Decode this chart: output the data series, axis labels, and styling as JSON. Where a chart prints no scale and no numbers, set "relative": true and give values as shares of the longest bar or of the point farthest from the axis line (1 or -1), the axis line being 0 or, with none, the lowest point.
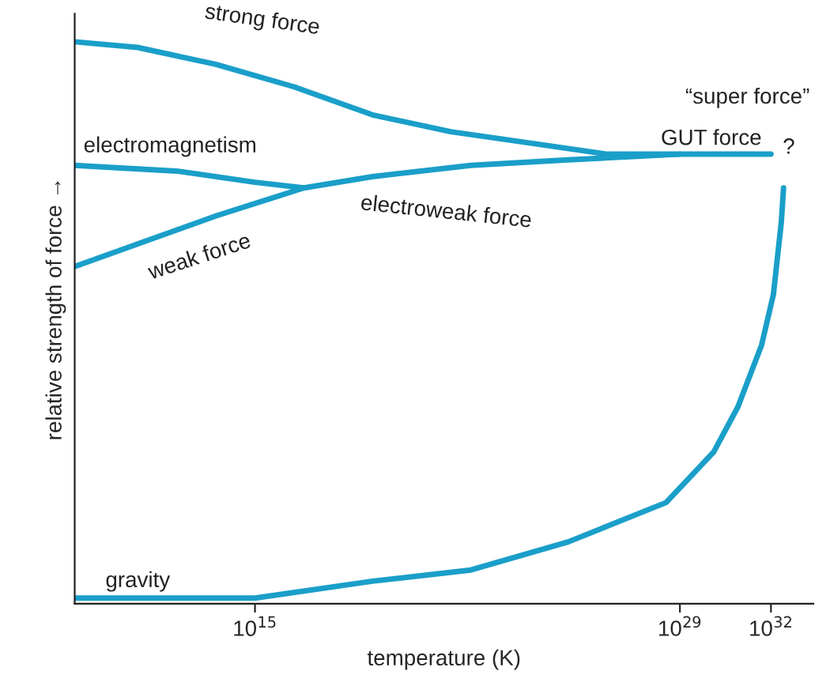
{
  "chart_data": {
    "type": "line",
    "relative": true,
    "log": "x",
    "xlabel": "temperature (K)",
    "ylabel": "relative strength of force →",
    "xlim": [
      1150000000.0,
      2.5e+33
    ],
    "xticks": [
      {
        "value": 1000000000000000.0,
        "label": "10$^{15}$"
      },
      {
        "value": 1e+29,
        "label": "10$^{29}$"
      },
      {
        "value": 1e+32,
        "label": "10$^{32}$"
      }
    ],
    "series": [
      {
        "name": "strong force",
        "color": "#1a9fc9",
        "x": [
          1150000000.0,
          135000000000.0,
          51000000000000.0,
          1.9e+16,
          7.4e+18,
          2.8e+21,
          1.1e+24,
          4.1e+26,
          1e+29,
          1e+32
        ],
        "values": [
          1.0,
          0.99,
          0.96,
          0.92,
          0.87,
          0.84,
          0.82,
          0.8,
          0.8,
          0.8
        ]
      },
      {
        "name": "electromagnetism",
        "color": "#1a9fc9",
        "x": [
          1150000000.0,
          2600000000000.0,
          1000000000000000.0,
          4.1e+16,
          7.4e+18,
          1.3e+22,
          2.1e+25,
          1e+29
        ],
        "values": [
          0.78,
          0.77,
          0.75,
          0.74,
          0.76,
          0.78,
          0.79,
          0.8
        ]
      },
      {
        "name": "weak force",
        "color": "#1a9fc9",
        "x": [
          1150000000.0,
          135000000000.0,
          51000000000000.0,
          4.1e+16
        ],
        "values": [
          0.6,
          0.64,
          0.69,
          0.74
        ]
      },
      {
        "name": "gravity",
        "color": "#1a9fc9",
        "x": [
          1150000000.0,
          1000000000000000.0,
          7.4e+18,
          1.3e+22,
          2.1e+25,
          3.5e+28,
          1.3e+30,
          8.1e+30,
          4.9e+31,
          1.2e+32,
          2.2e+32,
          2.6e+32
        ],
        "values": [
          0.01,
          0.01,
          0.04,
          0.06,
          0.11,
          0.18,
          0.27,
          0.35,
          0.46,
          0.55,
          0.68,
          0.74
        ]
      }
    ],
    "annotations": [
      "electroweak force",
      "GUT force",
      "“super force”",
      "?"
    ],
    "legend": false,
    "grid": false,
    "marker": "none",
    "line_style": "solid"
  }
}
